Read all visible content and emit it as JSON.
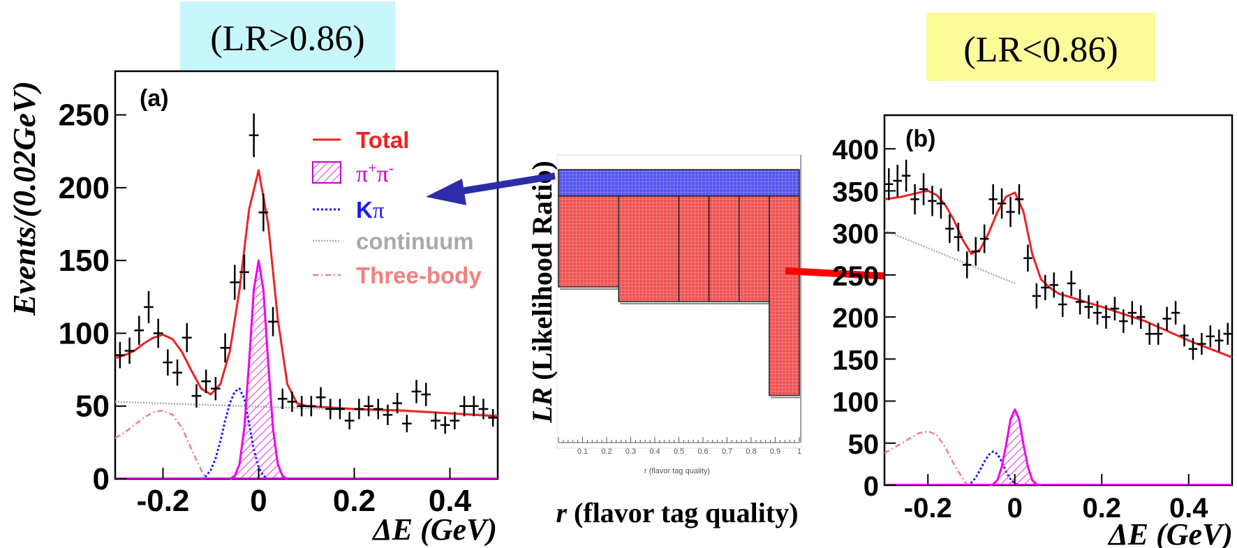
{
  "labels": {
    "left_condition": "(LR>0.86)",
    "right_condition": "(LR<0.86)",
    "center_ylabel_r": "LR",
    "center_ylabel_rest": " (Likelihood Ratio)",
    "center_xlabel_r": "r",
    "center_xlabel_rest": " (flavor tag quality)",
    "inset_xlabel": "r (flavor tag quality)"
  },
  "colors": {
    "left_cond_bg": "#c8f7fb",
    "right_cond_bg": "#fbfb9a",
    "total": "#ee2222",
    "pipi": "#ee00ee",
    "kpi": "#1a1aff",
    "continuum": "#aaaaaa",
    "threebody": "#f08080",
    "blue_band": "#5555ee",
    "red_band": "#ee5555",
    "arrow_blue": "#2c2ca8",
    "arrow_red": "#ff0000"
  },
  "legend": [
    {
      "label": "Total",
      "color": "#ee2222",
      "style": "solid"
    },
    {
      "label": "π⁺π⁻",
      "color": "#cc00cc",
      "style": "hatch"
    },
    {
      "label": "Kπ",
      "color": "#1a1aff",
      "style": "dotted"
    },
    {
      "label": "continuum",
      "color": "#aaaaaa",
      "style": "dotted"
    },
    {
      "label": "Three-body",
      "color": "#f08080",
      "style": "dashdot"
    }
  ],
  "chart_data": [
    {
      "panel": "(a)",
      "type": "scatter",
      "xlabel": "ΔE (GeV)",
      "ylabel": "Events/(0.02GeV)",
      "xlim": [
        -0.3,
        0.5
      ],
      "ylim": [
        0,
        280
      ],
      "xticks": [
        -0.2,
        0,
        0.2,
        0.4
      ],
      "xtick_labels": [
        "-0.2",
        "0",
        "0.2",
        "0.4"
      ],
      "yticks": [
        0,
        50,
        100,
        150,
        200,
        250
      ],
      "ytick_labels": [
        "0",
        "50",
        "100",
        "150",
        "200",
        "250"
      ],
      "points": {
        "x": [
          -0.29,
          -0.27,
          -0.25,
          -0.23,
          -0.21,
          -0.19,
          -0.17,
          -0.15,
          -0.13,
          -0.11,
          -0.09,
          -0.07,
          -0.05,
          -0.03,
          -0.01,
          0.01,
          0.03,
          0.05,
          0.07,
          0.09,
          0.11,
          0.13,
          0.15,
          0.17,
          0.19,
          0.21,
          0.23,
          0.25,
          0.27,
          0.29,
          0.31,
          0.33,
          0.35,
          0.37,
          0.39,
          0.41,
          0.43,
          0.45,
          0.47,
          0.49
        ],
        "y": [
          85,
          88,
          102,
          118,
          100,
          80,
          73,
          97,
          57,
          67,
          62,
          90,
          135,
          142,
          236,
          183,
          108,
          55,
          53,
          50,
          50,
          56,
          48,
          48,
          40,
          48,
          50,
          48,
          44,
          52,
          38,
          60,
          58,
          40,
          37,
          40,
          50,
          50,
          48,
          42
        ],
        "yerr": [
          9,
          9,
          10,
          11,
          10,
          9,
          9,
          10,
          8,
          8,
          8,
          10,
          12,
          12,
          15,
          13,
          10,
          7,
          7,
          7,
          7,
          7,
          7,
          7,
          6,
          7,
          7,
          7,
          7,
          7,
          6,
          8,
          8,
          6,
          6,
          6,
          7,
          7,
          7,
          6
        ]
      },
      "components": [
        {
          "name": "Total",
          "x": [
            -0.3,
            -0.28,
            -0.26,
            -0.24,
            -0.22,
            -0.2,
            -0.18,
            -0.16,
            -0.14,
            -0.12,
            -0.1,
            -0.08,
            -0.06,
            -0.04,
            -0.02,
            0,
            0.02,
            0.04,
            0.06,
            0.08,
            0.1,
            0.15,
            0.2,
            0.3,
            0.4,
            0.5
          ],
          "y": [
            83,
            85,
            88,
            93,
            97,
            99,
            96,
            87,
            74,
            62,
            58,
            65,
            88,
            130,
            185,
            212,
            175,
            110,
            65,
            52,
            50,
            49,
            48,
            47,
            45,
            43
          ]
        },
        {
          "name": "π⁺π⁻",
          "x": [
            -0.06,
            -0.05,
            -0.04,
            -0.03,
            -0.02,
            -0.01,
            0,
            0.01,
            0.02,
            0.03,
            0.04,
            0.05,
            0.06
          ],
          "y": [
            0,
            2,
            10,
            35,
            80,
            130,
            150,
            130,
            80,
            35,
            10,
            2,
            0
          ]
        },
        {
          "name": "Kπ",
          "x": [
            -0.12,
            -0.11,
            -0.1,
            -0.09,
            -0.08,
            -0.07,
            -0.06,
            -0.05,
            -0.04,
            -0.03,
            -0.02,
            -0.01,
            0,
            0.01,
            0.02
          ],
          "y": [
            0,
            2,
            6,
            14,
            26,
            40,
            52,
            60,
            62,
            55,
            38,
            20,
            8,
            2,
            0
          ]
        },
        {
          "name": "continuum",
          "x": [
            -0.3,
            0.5
          ],
          "y": [
            53,
            44
          ]
        },
        {
          "name": "Three-body",
          "x": [
            -0.3,
            -0.28,
            -0.26,
            -0.24,
            -0.22,
            -0.2,
            -0.18,
            -0.16,
            -0.14,
            -0.12,
            -0.11
          ],
          "y": [
            28,
            32,
            37,
            42,
            46,
            47,
            44,
            35,
            20,
            6,
            0
          ]
        }
      ]
    },
    {
      "panel": "(b)",
      "type": "scatter",
      "xlabel": "ΔE (GeV)",
      "ylabel": "Events/(0.02GeV)",
      "xlim": [
        -0.3,
        0.5
      ],
      "ylim": [
        0,
        440
      ],
      "xticks": [
        -0.2,
        0,
        0.2,
        0.4
      ],
      "xtick_labels": [
        "-0.2",
        "0",
        "0.2",
        "0.4"
      ],
      "yticks": [
        0,
        50,
        100,
        150,
        200,
        250,
        300,
        350,
        400
      ],
      "ytick_labels": [
        "0",
        "50",
        "100",
        "150",
        "200",
        "250",
        "300",
        "350",
        "400"
      ],
      "points": {
        "x": [
          -0.29,
          -0.27,
          -0.25,
          -0.23,
          -0.21,
          -0.19,
          -0.17,
          -0.15,
          -0.13,
          -0.11,
          -0.09,
          -0.07,
          -0.05,
          -0.03,
          -0.01,
          0.01,
          0.03,
          0.05,
          0.07,
          0.09,
          0.11,
          0.13,
          0.15,
          0.17,
          0.19,
          0.21,
          0.23,
          0.25,
          0.27,
          0.29,
          0.31,
          0.33,
          0.35,
          0.37,
          0.39,
          0.41,
          0.43,
          0.45,
          0.47,
          0.49
        ],
        "y": [
          358,
          362,
          368,
          340,
          352,
          338,
          335,
          305,
          295,
          262,
          278,
          293,
          340,
          335,
          325,
          340,
          270,
          225,
          235,
          238,
          215,
          240,
          218,
          212,
          205,
          200,
          210,
          195,
          205,
          200,
          180,
          180,
          198,
          205,
          178,
          162,
          168,
          177,
          172,
          180
        ],
        "yerr": [
          19,
          19,
          19,
          18,
          19,
          18,
          18,
          17,
          17,
          16,
          17,
          17,
          18,
          18,
          18,
          18,
          16,
          15,
          15,
          15,
          15,
          15,
          15,
          14,
          14,
          14,
          14,
          14,
          14,
          14,
          13,
          13,
          14,
          14,
          13,
          13,
          13,
          13,
          13,
          13
        ]
      },
      "components": [
        {
          "name": "Total",
          "x": [
            -0.3,
            -0.26,
            -0.22,
            -0.2,
            -0.18,
            -0.16,
            -0.14,
            -0.12,
            -0.1,
            -0.08,
            -0.06,
            -0.04,
            -0.02,
            0,
            0.02,
            0.04,
            0.06,
            0.08,
            0.1,
            0.2,
            0.3,
            0.4,
            0.5
          ],
          "y": [
            340,
            343,
            348,
            350,
            345,
            333,
            315,
            292,
            275,
            280,
            300,
            325,
            343,
            348,
            325,
            275,
            245,
            235,
            228,
            212,
            195,
            172,
            152
          ]
        },
        {
          "name": "π⁺π⁻",
          "x": [
            -0.06,
            -0.05,
            -0.04,
            -0.03,
            -0.02,
            -0.01,
            0,
            0.01,
            0.02,
            0.03,
            0.04,
            0.05,
            0.06
          ],
          "y": [
            0,
            1,
            6,
            22,
            48,
            78,
            90,
            78,
            48,
            22,
            6,
            1,
            0
          ]
        },
        {
          "name": "Kπ",
          "x": [
            -0.11,
            -0.1,
            -0.09,
            -0.08,
            -0.07,
            -0.06,
            -0.05,
            -0.04,
            -0.03,
            -0.02,
            -0.01,
            0,
            0.01
          ],
          "y": [
            0,
            3,
            9,
            18,
            28,
            36,
            40,
            37,
            28,
            16,
            7,
            2,
            0
          ]
        },
        {
          "name": "continuum",
          "x": [
            -0.3,
            0.0
          ],
          "y": [
            303,
            240
          ]
        },
        {
          "name": "Three-body",
          "x": [
            -0.3,
            -0.28,
            -0.26,
            -0.24,
            -0.22,
            -0.2,
            -0.18,
            -0.16,
            -0.14,
            -0.12,
            -0.11
          ],
          "y": [
            38,
            44,
            50,
            56,
            62,
            64,
            60,
            45,
            25,
            8,
            0
          ]
        }
      ]
    },
    {
      "panel": "inset",
      "type": "bar",
      "xlabel": "r (flavor tag quality)",
      "ylabel": "LR (Likelihood Ratio)",
      "xlim": [
        0,
        1
      ],
      "ylim": [
        0,
        1
      ],
      "xtick_labels": [
        "0.1",
        "0.2",
        "0.3",
        "0.4",
        "0.5",
        "0.6",
        "0.7",
        "0.8",
        "0.9",
        "1"
      ],
      "threshold": 0.86,
      "bins": [
        {
          "r0": 0.0,
          "r1": 0.25,
          "lr_low": 0.55
        },
        {
          "r0": 0.25,
          "r1": 0.5,
          "lr_low": 0.5
        },
        {
          "r0": 0.5,
          "r1": 0.625,
          "lr_low": 0.5
        },
        {
          "r0": 0.625,
          "r1": 0.75,
          "lr_low": 0.5
        },
        {
          "r0": 0.75,
          "r1": 0.875,
          "lr_low": 0.5
        },
        {
          "r0": 0.875,
          "r1": 1.0,
          "lr_low": 0.18
        }
      ]
    }
  ]
}
